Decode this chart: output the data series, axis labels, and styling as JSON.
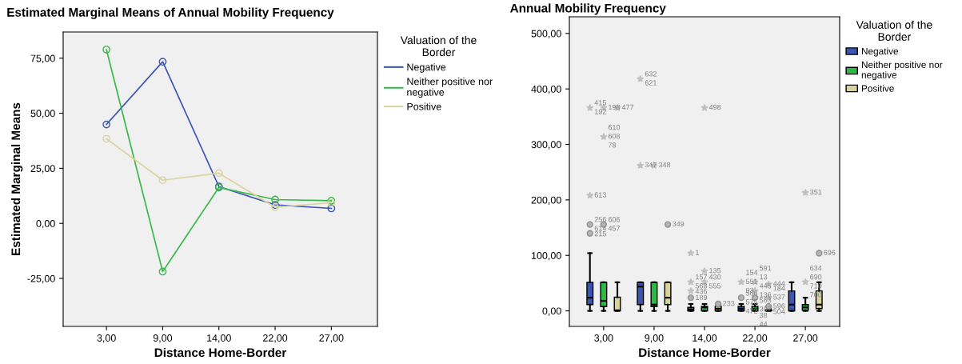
{
  "chart_data": [
    {
      "type": "line",
      "title": "Estimated Marginal Means of Annual Mobility Frequency",
      "xlabel": "Distance Home-Border",
      "ylabel": "Estimated Marginal Means",
      "legend_title": "Valuation of the Border",
      "legend": "right",
      "marker": "circle",
      "grid": false,
      "categories": [
        "3,00",
        "9,00",
        "14,00",
        "22,00",
        "27,00"
      ],
      "ylim": [
        -46.8,
        86.9
      ],
      "yticks": [
        {
          "value": -25,
          "label": "-25,00"
        },
        {
          "value": 0,
          "label": "0,00"
        },
        {
          "value": 25,
          "label": "25,00"
        },
        {
          "value": 50,
          "label": "50,00"
        },
        {
          "value": 75,
          "label": "75,00"
        }
      ],
      "series": [
        {
          "name": "Negative",
          "color": "#3b55b4",
          "values": [
            44.9,
            73.4,
            16.7,
            8.4,
            6.8
          ]
        },
        {
          "name": "Neither positive nor negative",
          "color": "#38b84a",
          "values": [
            78.9,
            -21.9,
            16.3,
            10.8,
            10.3
          ]
        },
        {
          "name": "Positive",
          "color": "#d9d4a0",
          "values": [
            38.4,
            19.6,
            22.8,
            7.3,
            9.4
          ]
        }
      ]
    },
    {
      "type": "box",
      "title": "Annual Mobility Frequency",
      "xlabel": "Distance Home-Border",
      "legend_title": "Valuation of the Border",
      "legend": "right",
      "grid": false,
      "categories": [
        "3,00",
        "9,00",
        "14,00",
        "22,00",
        "27,00"
      ],
      "ylim": [
        -28,
        530
      ],
      "yticks": [
        {
          "value": 0,
          "label": "0,00"
        },
        {
          "value": 100,
          "label": "100,00"
        },
        {
          "value": 200,
          "label": "200,00"
        },
        {
          "value": 300,
          "label": "300,00"
        },
        {
          "value": 400,
          "label": "400,00"
        },
        {
          "value": 500,
          "label": "500,00"
        }
      ],
      "series": [
        {
          "name": "Negative",
          "color": "#3a56b0",
          "boxes": [
            {
              "low": 0,
              "q1": 11.3,
              "median": 23.7,
              "q3": 51.5,
              "high": 104,
              "outliers": [
                139.7,
                155.7,
                208,
                366
              ]
            },
            {
              "low": 0,
              "q1": 11.3,
              "median": 43.8,
              "q3": 51.5,
              "high": 51.5,
              "outliers": [
                262,
                418
              ]
            },
            {
              "low": 0,
              "q1": 0,
              "median": 2,
              "q3": 6.2,
              "high": 12.4,
              "outliers": [
                23.7,
                36,
                52,
                104
              ]
            },
            {
              "low": 0,
              "q1": 0,
              "median": 4,
              "q3": 8.2,
              "high": 12.4,
              "outliers": [
                23.7,
                52
              ]
            },
            {
              "low": 0,
              "q1": 0,
              "median": 11.3,
              "q3": 36,
              "high": 51.5
            }
          ]
        },
        {
          "name": "Neither positive nor negative",
          "color": "#2db84a",
          "boxes": [
            {
              "low": 0,
              "q1": 7.7,
              "median": 18,
              "q3": 51.5,
              "high": 51.5,
              "outliers": [
                155.7,
                313.8,
                366
              ]
            },
            {
              "low": 0,
              "q1": 7.7,
              "median": 11.3,
              "q3": 51.5,
              "high": 51.5,
              "outliers": [
                262
              ]
            },
            {
              "low": 0,
              "q1": 0,
              "median": 6.2,
              "q3": 8.2,
              "high": 12.4,
              "outliers": [
                52,
                71.6,
                366
              ]
            },
            {
              "low": 0,
              "q1": 0,
              "median": 4,
              "q3": 8.2,
              "high": 12.4,
              "outliers": [
                23.7,
                36,
                52
              ]
            },
            {
              "low": 0,
              "q1": 1,
              "median": 6.2,
              "q3": 11.3,
              "high": 23.7,
              "outliers": [
                52,
                213
              ]
            }
          ]
        },
        {
          "name": "Positive",
          "color": "#d8d29b",
          "boxes": [
            {
              "low": 0,
              "q1": 0,
              "median": 1,
              "q3": 24.7,
              "high": 51.5,
              "outliers": [
                366
              ]
            },
            {
              "low": 0,
              "q1": 11.3,
              "median": 23.7,
              "q3": 51.5,
              "high": 51.5,
              "outliers": [
                155.7
              ]
            },
            {
              "low": 0,
              "q1": 0,
              "median": 4,
              "q3": 8.2,
              "high": 10.3,
              "outliers": [
                12.4
              ]
            },
            {
              "low": 0,
              "q1": 0,
              "median": 1,
              "q3": 2,
              "high": 4,
              "outliers": [
                7.7,
                23.7,
                48
              ]
            },
            {
              "low": 0,
              "q1": 4,
              "median": 11.3,
              "q3": 36,
              "high": 51.5,
              "outliers": [
                104
              ]
            }
          ]
        }
      ],
      "annotations": [
        "215",
        "256",
        "614",
        "613",
        "415",
        "192",
        "347",
        "632",
        "621",
        "189",
        "436",
        "157",
        "568",
        "1",
        "566",
        "575",
        "472",
        "154",
        "551",
        "93",
        "606",
        "457",
        "610",
        "608",
        "78",
        "198",
        "348",
        "430",
        "555",
        "135",
        "498",
        "38",
        "44",
        "563",
        "397",
        "591",
        "13",
        "445",
        "136",
        "634",
        "690",
        "710",
        "700",
        "351",
        "477",
        "349",
        "233",
        "504",
        "184",
        "537",
        "596",
        "444",
        "696"
      ]
    }
  ]
}
